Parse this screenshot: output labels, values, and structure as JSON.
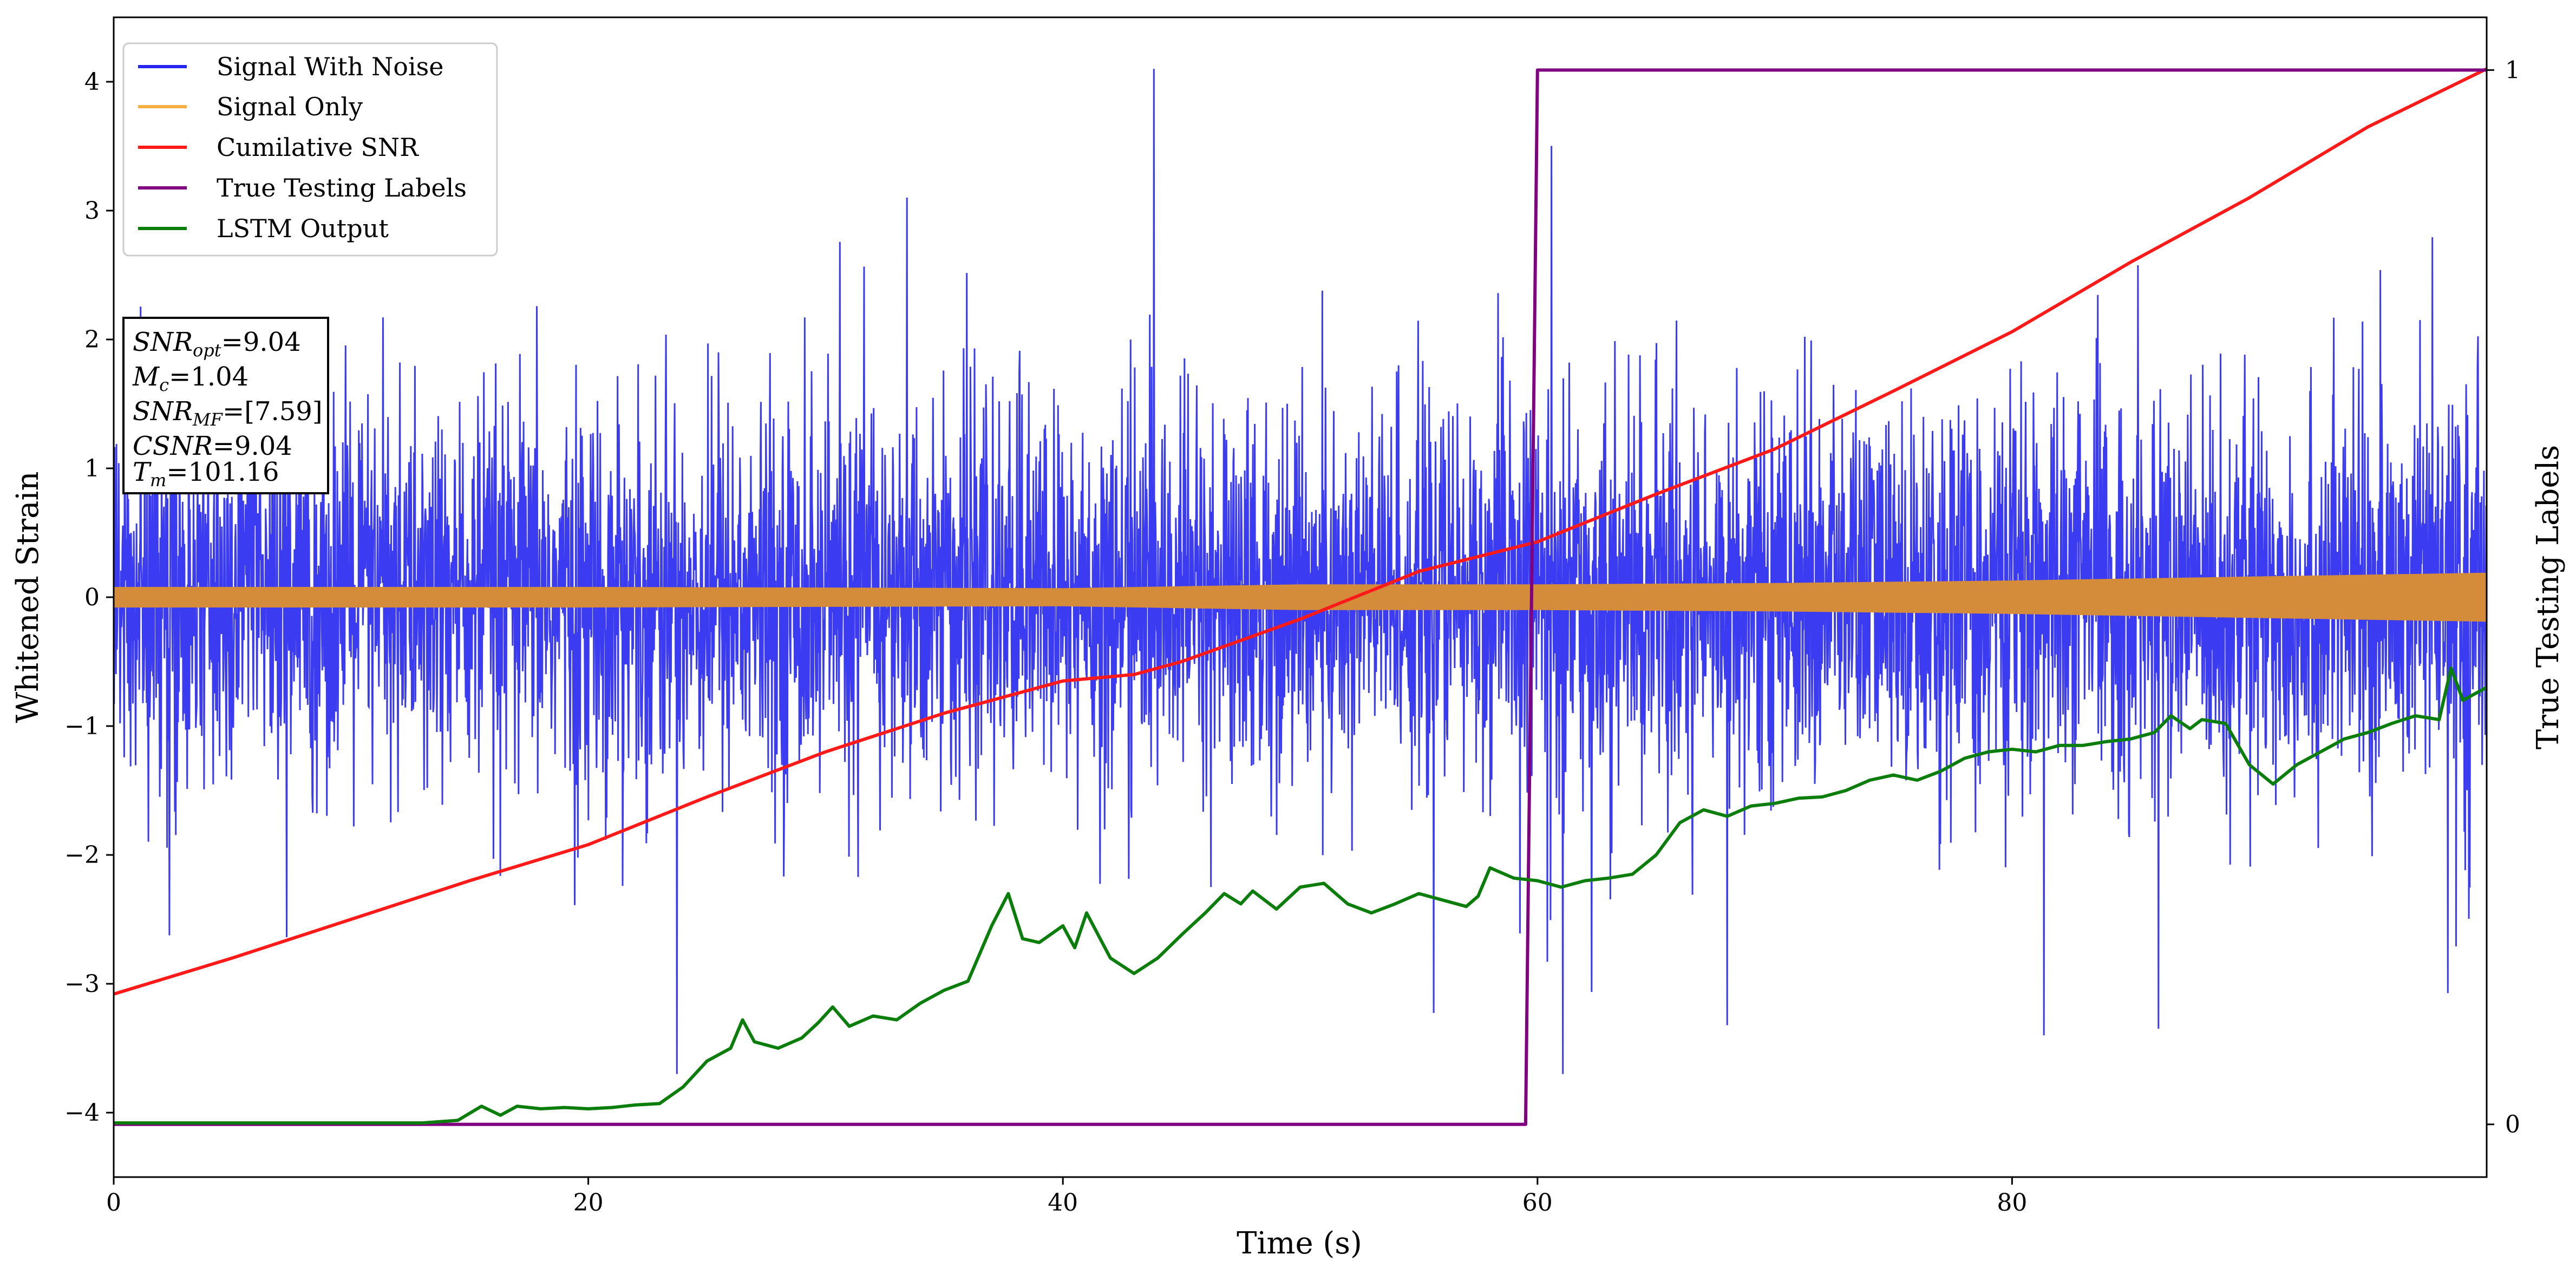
{
  "chart_data": {
    "type": "line",
    "xlabel": "Time (s)",
    "ylabel": "Whitened Strain",
    "ylabel_right": "True Testing Labels",
    "xlim": [
      0,
      100
    ],
    "ylim": [
      -4.5,
      4.5
    ],
    "ylim_right": [
      -0.05,
      1.05
    ],
    "x_ticks": [
      0,
      20,
      40,
      60,
      80
    ],
    "y_ticks": [
      -4,
      -3,
      -2,
      -1,
      0,
      1,
      2,
      3,
      4
    ],
    "y_ticks_right": [
      0,
      1
    ],
    "grid": false,
    "legend_position": "top-left",
    "legend": [
      {
        "name": "Signal With Noise",
        "color": "#2626f0"
      },
      {
        "name": "Signal Only",
        "color": "#f5b041"
      },
      {
        "name": "Cumilative SNR",
        "color": "#ff1a1a"
      },
      {
        "name": "True Testing Labels",
        "color": "#800080"
      },
      {
        "name": "LSTM Output",
        "color": "#0a7d0a"
      }
    ],
    "info_box": {
      "snr_opt_label": "SNR",
      "snr_opt_sub": "opt",
      "snr_opt_value": "=9.04",
      "mc_label": "M",
      "mc_sub": "c",
      "mc_value": "=1.04",
      "snr_mf_label": "SNR",
      "snr_mf_sub": "MF",
      "snr_mf_value": "=[7.59]",
      "csnr_label": "CSNR",
      "csnr_value": "=9.04",
      "tm_label": "T",
      "tm_sub": "m",
      "tm_value": "=101.16"
    },
    "series": [
      {
        "name": "Signal With Noise",
        "axis": "left",
        "style": "noise",
        "color": "#2626f0",
        "envelope_typical": [
          -1.6,
          1.6
        ],
        "envelope_spikes": [
          -3.7,
          4.1
        ]
      },
      {
        "name": "Signal Only",
        "axis": "left",
        "style": "band",
        "color": "#d48c3a",
        "x": [
          0,
          20,
          40,
          50,
          60,
          70,
          80,
          90,
          100
        ],
        "amplitude": [
          0.08,
          0.08,
          0.07,
          0.1,
          0.1,
          0.11,
          0.13,
          0.16,
          0.19
        ]
      },
      {
        "name": "Cumilative SNR",
        "axis": "left",
        "color": "#ff1a1a",
        "x": [
          0,
          5,
          10,
          15,
          20,
          25,
          30,
          35,
          40,
          43,
          45,
          50,
          55,
          60,
          65,
          70,
          75,
          80,
          85,
          90,
          95,
          100
        ],
        "y": [
          -3.08,
          -2.8,
          -2.5,
          -2.2,
          -1.92,
          -1.55,
          -1.2,
          -0.9,
          -0.65,
          -0.6,
          -0.5,
          -0.17,
          0.2,
          0.43,
          0.8,
          1.15,
          1.6,
          2.06,
          2.6,
          3.1,
          3.65,
          4.1
        ]
      },
      {
        "name": "True Testing Labels",
        "axis": "right",
        "color": "#800080",
        "x": [
          0,
          59.5,
          60.0,
          100
        ],
        "y": [
          0,
          0,
          1,
          1
        ]
      },
      {
        "name": "LSTM Output",
        "axis": "left",
        "color": "#0a7d0a",
        "x": [
          0,
          13,
          14.5,
          15.5,
          16.3,
          17,
          18,
          19,
          20,
          21,
          22,
          23,
          24,
          25,
          26,
          26.5,
          27,
          28,
          29,
          29.7,
          30.3,
          31,
          32,
          33,
          34,
          35,
          36,
          37,
          37.7,
          38.3,
          39,
          40,
          40.5,
          41,
          42,
          43,
          44,
          45,
          46,
          46.8,
          47.5,
          48,
          49,
          50,
          51,
          52,
          53,
          54,
          55,
          56,
          57,
          57.5,
          58,
          59,
          60,
          61,
          62,
          63,
          64,
          65,
          66,
          67,
          68,
          69,
          70,
          71,
          72,
          73,
          74,
          75,
          76,
          77,
          78,
          79,
          80,
          81,
          82,
          83,
          84,
          85,
          86,
          86.7,
          87.5,
          88,
          89,
          90,
          91,
          92,
          93,
          94,
          95,
          96,
          97,
          98,
          98.5,
          99,
          100
        ],
        "y": [
          -4.08,
          -4.08,
          -4.06,
          -3.95,
          -4.02,
          -3.95,
          -3.97,
          -3.96,
          -3.97,
          -3.96,
          -3.94,
          -3.93,
          -3.8,
          -3.6,
          -3.5,
          -3.28,
          -3.45,
          -3.5,
          -3.42,
          -3.3,
          -3.18,
          -3.33,
          -3.25,
          -3.28,
          -3.15,
          -3.05,
          -2.98,
          -2.55,
          -2.3,
          -2.65,
          -2.68,
          -2.55,
          -2.72,
          -2.45,
          -2.8,
          -2.92,
          -2.8,
          -2.62,
          -2.45,
          -2.3,
          -2.38,
          -2.28,
          -2.42,
          -2.25,
          -2.22,
          -2.38,
          -2.45,
          -2.38,
          -2.3,
          -2.35,
          -2.4,
          -2.32,
          -2.1,
          -2.18,
          -2.2,
          -2.25,
          -2.2,
          -2.18,
          -2.15,
          -2.0,
          -1.75,
          -1.65,
          -1.7,
          -1.62,
          -1.6,
          -1.56,
          -1.55,
          -1.5,
          -1.42,
          -1.38,
          -1.42,
          -1.35,
          -1.25,
          -1.2,
          -1.18,
          -1.2,
          -1.15,
          -1.15,
          -1.12,
          -1.1,
          -1.05,
          -0.92,
          -1.02,
          -0.95,
          -0.98,
          -1.3,
          -1.45,
          -1.3,
          -1.2,
          -1.1,
          -1.05,
          -0.98,
          -0.92,
          -0.95,
          -0.55,
          -0.8,
          -0.7
        ]
      }
    ]
  }
}
